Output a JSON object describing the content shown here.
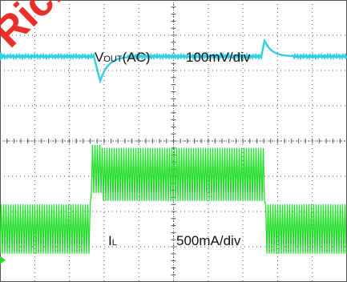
{
  "watermark": "Richtek Energy Co",
  "labels": {
    "vout_main": "V",
    "vout_sub": "OUT",
    "vout_suffix": "(AC)",
    "vout_scale": "100mV/div",
    "il_main": "I",
    "il_sub": "L",
    "il_scale": "500mA/div"
  },
  "colors": {
    "vout": "#2fd0e6",
    "il": "#22dd2a",
    "grid": "#555555",
    "watermark": "#e8251f"
  },
  "chart_data": {
    "type": "line",
    "title": "",
    "grid": true,
    "divisions": {
      "x": 10,
      "y": 8
    },
    "series": [
      {
        "name": "VOUT(AC)",
        "scale": "100mV/div",
        "unit": "div",
        "baseline_div": 1.6,
        "events": [
          {
            "x_div": 2.75,
            "type": "undershoot",
            "amplitude_div": -0.7
          },
          {
            "x_div": 7.6,
            "type": "overshoot",
            "amplitude_div": 0.45
          }
        ]
      },
      {
        "name": "IL",
        "scale": "500mA/div",
        "unit": "div",
        "low_band_div": [
          5.8,
          7.2
        ],
        "high_band_div": [
          4.2,
          5.7
        ],
        "step_up_x_div": 2.6,
        "step_down_x_div": 7.65
      }
    ]
  }
}
